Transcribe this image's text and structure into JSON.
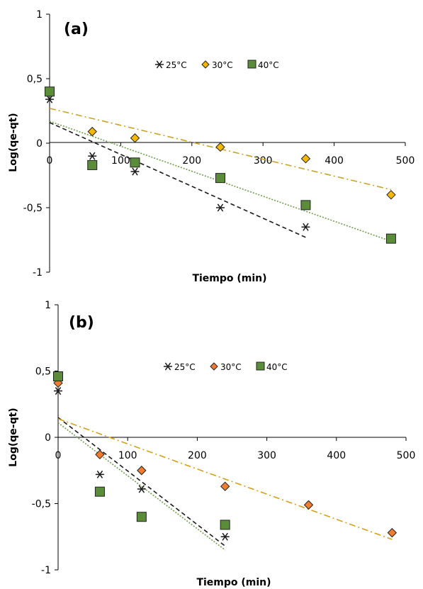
{
  "chart_data": [
    {
      "panel": "(a)",
      "type": "scatter",
      "xlabel": "Tiempo (min)",
      "ylabel": "Log(qe-qt)",
      "xlim": [
        0,
        500
      ],
      "ylim": [
        -1,
        1
      ],
      "x_ticks": [
        0,
        100,
        200,
        300,
        400,
        500
      ],
      "y_ticks": [
        -1,
        -0.5,
        0,
        0.5,
        1
      ],
      "x_tick_labels": [
        "0",
        "100",
        "200",
        "300",
        "400",
        "500"
      ],
      "y_tick_labels": [
        "-1",
        "-0,5",
        "0",
        "0,5",
        "1"
      ],
      "legend_position": "top-center",
      "grid": false,
      "series": [
        {
          "name": "25°C",
          "marker": "asterisk",
          "color": "#1a1a1a",
          "x": [
            0,
            60,
            120,
            240,
            360
          ],
          "y": [
            0.34,
            -0.1,
            -0.22,
            -0.5,
            -0.65
          ],
          "trendline": {
            "x": [
              0,
              360
            ],
            "y": [
              0.16,
              -0.73
            ],
            "style": "dashed",
            "color": "#1a1a1a"
          }
        },
        {
          "name": "30°C",
          "marker": "diamond",
          "color": "#f5b800",
          "x": [
            60,
            120,
            240,
            360,
            480
          ],
          "y": [
            0.09,
            0.04,
            -0.03,
            -0.12,
            -0.4
          ],
          "trendline": {
            "x": [
              0,
              480
            ],
            "y": [
              0.27,
              -0.36
            ],
            "style": "dash-dot",
            "color": "#c9a227"
          }
        },
        {
          "name": "40°C",
          "marker": "square",
          "color": "#5b8c3a",
          "x": [
            0,
            60,
            120,
            240,
            360,
            480
          ],
          "y": [
            0.4,
            -0.17,
            -0.15,
            -0.27,
            -0.48,
            -0.74
          ],
          "trendline": {
            "x": [
              0,
              480
            ],
            "y": [
              0.17,
              -0.76
            ],
            "style": "dotted",
            "color": "#6f9e4b"
          }
        }
      ]
    },
    {
      "panel": "(b)",
      "type": "scatter",
      "xlabel": "Tiempo (min)",
      "ylabel": "Log(qe-qt)",
      "xlim": [
        0,
        500
      ],
      "ylim": [
        -1,
        1
      ],
      "x_ticks": [
        0,
        100,
        200,
        300,
        400,
        500
      ],
      "y_ticks": [
        -1,
        -0.5,
        0,
        0.5,
        1
      ],
      "x_tick_labels": [
        "0",
        "100",
        "200",
        "300",
        "400",
        "500"
      ],
      "y_tick_labels": [
        "-1",
        "-0,5",
        "0",
        "0,5",
        "1"
      ],
      "legend_position": "top-center",
      "grid": false,
      "series": [
        {
          "name": "25°C",
          "marker": "asterisk",
          "color": "#1a1a1a",
          "x": [
            0,
            60,
            120,
            240
          ],
          "y": [
            0.35,
            -0.28,
            -0.39,
            -0.75
          ],
          "trendline": {
            "x": [
              0,
              240
            ],
            "y": [
              0.15,
              -0.82
            ],
            "style": "dashed",
            "color": "#1a1a1a"
          }
        },
        {
          "name": "30°C",
          "marker": "diamond",
          "color": "#f07c30",
          "x": [
            0,
            60,
            120,
            240,
            360,
            480
          ],
          "y": [
            0.41,
            -0.13,
            -0.25,
            -0.37,
            -0.51,
            -0.72
          ],
          "trendline": {
            "x": [
              0,
              480
            ],
            "y": [
              0.14,
              -0.77
            ],
            "style": "dash-dot",
            "color": "#d4a017"
          }
        },
        {
          "name": "40°C",
          "marker": "square",
          "color": "#5b8c3a",
          "x": [
            0,
            60,
            120,
            240
          ],
          "y": [
            0.46,
            -0.41,
            -0.6,
            -0.66
          ],
          "trendline": {
            "x": [
              0,
              240
            ],
            "y": [
              0.11,
              -0.85
            ],
            "style": "dotted",
            "color": "#6f9e4b"
          }
        }
      ]
    }
  ]
}
